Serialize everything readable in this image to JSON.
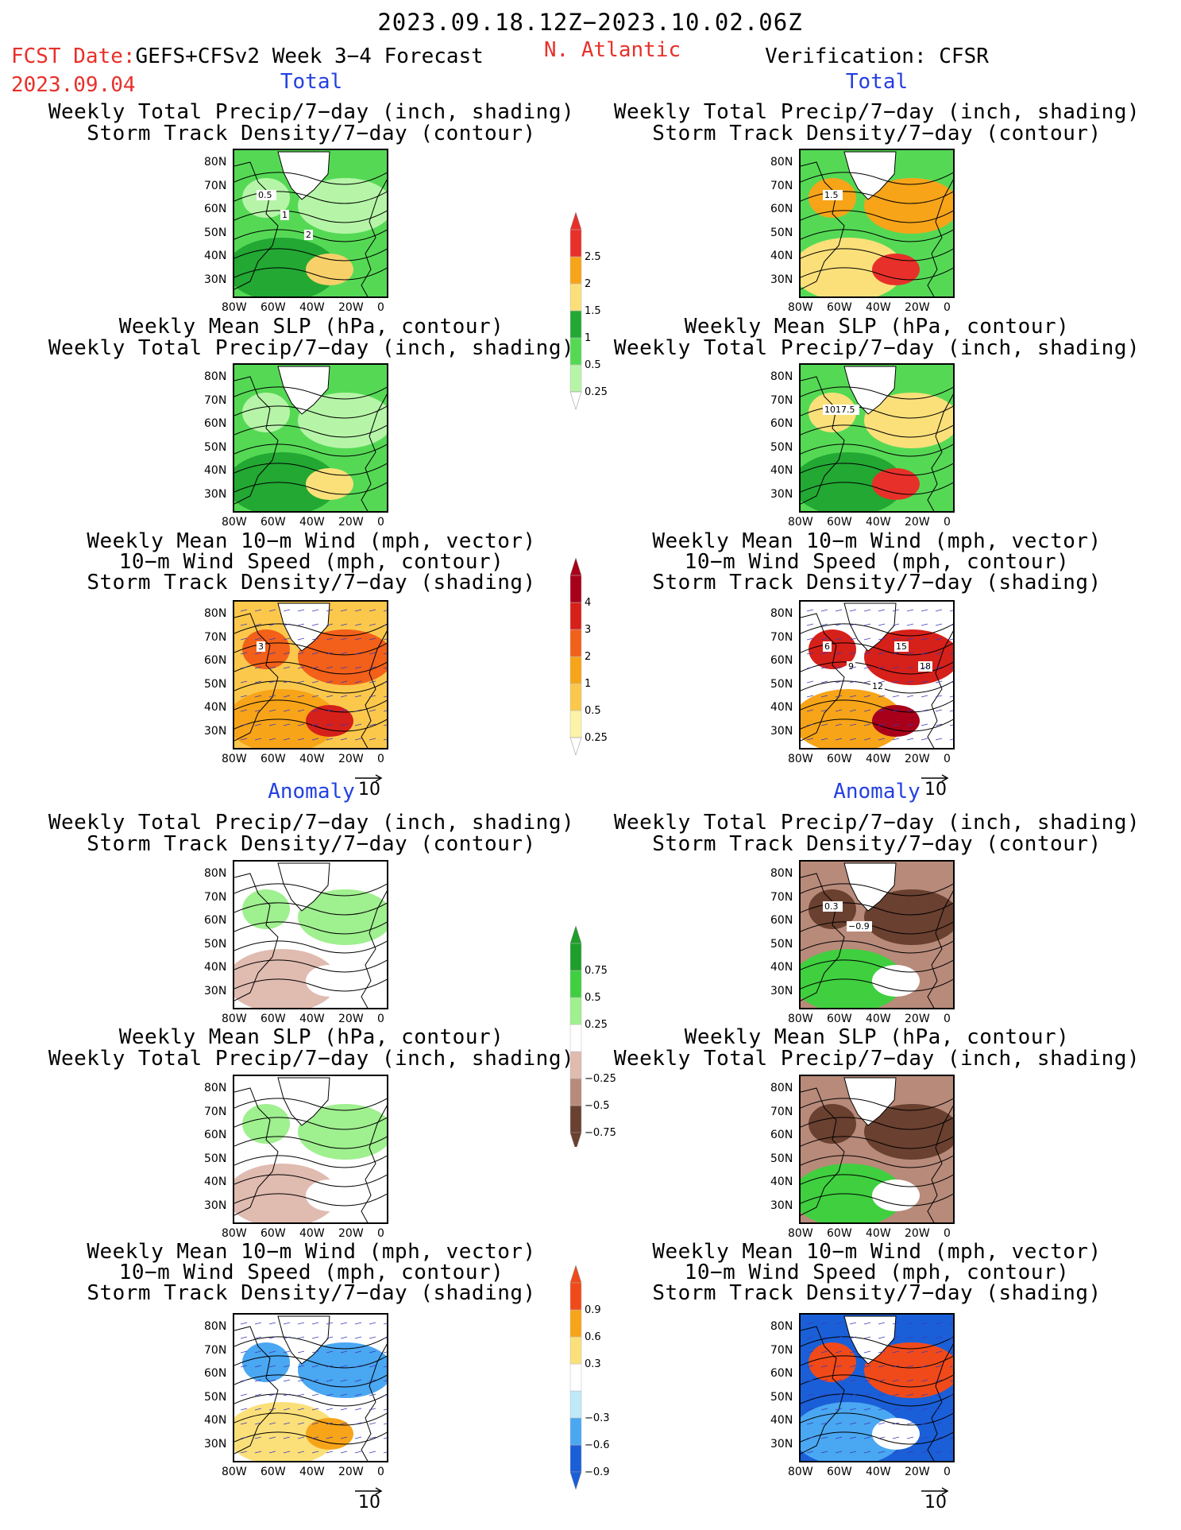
{
  "header": {
    "date_range": "2023.09.18.12Z−2023.10.02.06Z",
    "fcst_prefix": "FCST Date:",
    "fcst_model": "GEFS+CFSv2 Week 3−4 Forecast",
    "region": "N. Atlantic",
    "fcst_date": "2023.09.04",
    "verification": "Verification: CFSR"
  },
  "sections": {
    "total": "Total",
    "anomaly": "Anomaly"
  },
  "titles": {
    "precip_storm": [
      "Weekly Total Precip/7−day (inch, shading)",
      "Storm Track Density/7−day (contour)"
    ],
    "slp_precip": [
      "Weekly Mean SLP (hPa, contour)",
      "Weekly Total Precip/7−day (inch, shading)"
    ],
    "wind": [
      "Weekly Mean 10−m Wind (mph, vector)",
      "10−m Wind Speed (mph, contour)",
      "Storm Track Density/7−day (shading)"
    ]
  },
  "axes": {
    "lat_ticks": [
      "80N",
      "70N",
      "60N",
      "50N",
      "40N",
      "30N"
    ],
    "lon_ticks": [
      "80W",
      "60W",
      "40W",
      "20W",
      "0"
    ]
  },
  "vector_ref": "10",
  "contour_labels": {
    "p1_left": [
      "0.5",
      "1",
      "2"
    ],
    "p1_right": [
      "1.5"
    ],
    "p2_right": [
      "1017.5"
    ],
    "p3_left": [
      "3"
    ],
    "p3_right": [
      "6",
      "9",
      "12",
      "15",
      "18"
    ],
    "p4_right": [
      "0.3",
      "−0.9"
    ]
  },
  "colorbars": {
    "precip_total": {
      "labels": [
        "2.5",
        "2",
        "1.5",
        "1",
        "0.5",
        "0.25"
      ],
      "colors": [
        "#e8302a",
        "#f7a419",
        "#fbe07a",
        "#22a833",
        "#55d955",
        "#b6f5a8"
      ]
    },
    "storm_total": {
      "labels": [
        "4",
        "3",
        "2",
        "1",
        "0.5",
        "0.25"
      ],
      "colors": [
        "#a8001a",
        "#d6201a",
        "#f2601a",
        "#f7a419",
        "#fbc84c",
        "#fdf3a8"
      ]
    },
    "precip_anom": {
      "labels": [
        "0.75",
        "0.5",
        "0.25",
        "−0.25",
        "−0.5",
        "−0.75"
      ],
      "colors": [
        "#1e9e2a",
        "#3fcf3f",
        "#9ff08f",
        "#ffffff",
        "#e0bbb0",
        "#b88a7a",
        "#6a4030"
      ]
    },
    "storm_anom": {
      "labels": [
        "0.9",
        "0.6",
        "0.3",
        "−0.3",
        "−0.6",
        "−0.9"
      ],
      "colors": [
        "#f04a1a",
        "#f7a419",
        "#fbe07a",
        "#ffffff",
        "#bfe9f7",
        "#4aa7f2",
        "#1a5fd8"
      ]
    }
  }
}
